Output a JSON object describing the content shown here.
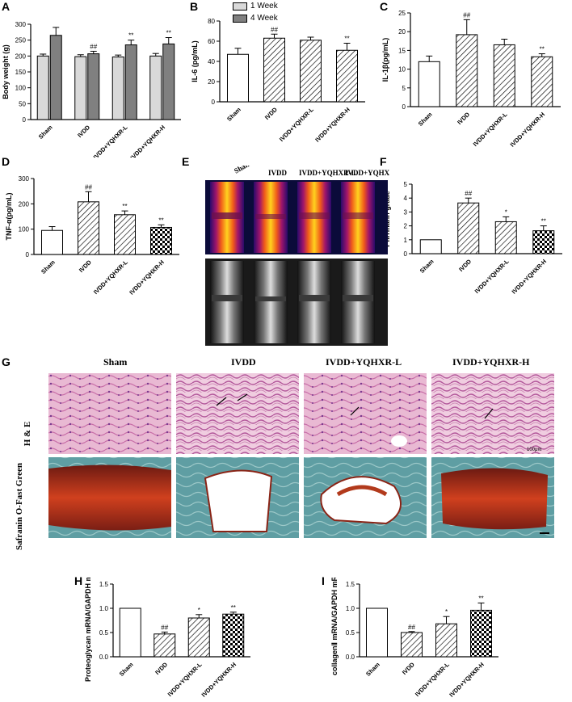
{
  "panel_letters": [
    "A",
    "B",
    "C",
    "D",
    "E",
    "F",
    "G",
    "H",
    "I"
  ],
  "colors": {
    "light_gray": "#d9d9d9",
    "dark_gray": "#808080",
    "white": "#ffffff"
  },
  "chart_data": [
    {
      "id": "A",
      "type": "bar",
      "categories": [
        "Sham",
        "IVDD",
        "IVDD+YQHXR-L",
        "IVDD+YQHXR-H"
      ],
      "series": [
        {
          "name": "1 Week",
          "values": [
            200,
            198,
            197,
            200
          ],
          "errors": [
            6,
            6,
            6,
            8
          ],
          "marks": [
            "",
            "",
            "",
            ""
          ]
        },
        {
          "name": "4 Week",
          "values": [
            265,
            207,
            235,
            238
          ],
          "errors": [
            25,
            8,
            15,
            20
          ],
          "marks": [
            "",
            "##",
            "**",
            "**"
          ]
        }
      ],
      "ylabel": "Body weight (g)",
      "ylim": [
        0,
        300
      ],
      "yticks": [
        0,
        50,
        100,
        150,
        200,
        250,
        300
      ],
      "legend": "top-right"
    },
    {
      "id": "B",
      "type": "bar",
      "categories": [
        "Sham",
        "IVDD",
        "IVDD+YQHXR-L",
        "IVDD+YQHXR-H"
      ],
      "values": [
        47,
        63,
        61,
        51
      ],
      "errors": [
        6,
        4,
        3,
        7
      ],
      "marks": [
        "",
        "##",
        "",
        "**"
      ],
      "patterns": [
        "white",
        "hatch",
        "hatch",
        "hatch"
      ],
      "ylabel": "IL-6 (pg/mL)",
      "ylim": [
        0,
        80
      ],
      "yticks": [
        0,
        20,
        40,
        60,
        80
      ]
    },
    {
      "id": "C",
      "type": "bar",
      "categories": [
        "Sham",
        "IVDD",
        "IVDD+YQHXR-L",
        "IVDD+YQHXR-H"
      ],
      "values": [
        12,
        19.2,
        16.5,
        13.3
      ],
      "errors": [
        1.5,
        4,
        1.5,
        0.8
      ],
      "marks": [
        "",
        "##",
        "",
        "**"
      ],
      "patterns": [
        "white",
        "hatch",
        "hatch",
        "hatch"
      ],
      "ylabel": "IL-1β(pg/mL)",
      "ylim": [
        0,
        25
      ],
      "yticks": [
        0,
        5,
        10,
        15,
        20,
        25
      ]
    },
    {
      "id": "D",
      "type": "bar",
      "categories": [
        "Sham",
        "IVDD",
        "IVDD+YQHXR-L",
        "IVDD+YQHXR-H"
      ],
      "values": [
        95,
        208,
        157,
        107
      ],
      "errors": [
        15,
        40,
        15,
        10
      ],
      "marks": [
        "",
        "##",
        "**",
        "**"
      ],
      "patterns": [
        "white",
        "hatch",
        "hatch",
        "check"
      ],
      "ylabel": "TNF-α(pg/mL)",
      "ylim": [
        0,
        300
      ],
      "yticks": [
        0,
        100,
        200,
        300
      ]
    },
    {
      "id": "F",
      "type": "bar",
      "categories": [
        "Sham",
        "IVDD",
        "IVDD+YQHXR-L",
        "IVDD+YQHXR-H"
      ],
      "values": [
        1,
        3.65,
        2.3,
        1.65
      ],
      "errors": [
        0,
        0.35,
        0.35,
        0.35
      ],
      "marks": [
        "",
        "##",
        "*",
        "**"
      ],
      "patterns": [
        "white",
        "hatch",
        "hatch",
        "check"
      ],
      "ylabel": "Pfirrmann grade",
      "ylim": [
        0,
        5
      ],
      "yticks": [
        0,
        1,
        2,
        3,
        4,
        5
      ]
    },
    {
      "id": "H",
      "type": "bar",
      "categories": [
        "Sham",
        "IVDD",
        "IVDD+YQHXR-L",
        "IVDD+YQHXR-H"
      ],
      "values": [
        1.0,
        0.47,
        0.8,
        0.88
      ],
      "errors": [
        0,
        0.04,
        0.07,
        0.04
      ],
      "marks": [
        "",
        "##",
        "*",
        "**"
      ],
      "patterns": [
        "white",
        "hatch",
        "hatch",
        "check"
      ],
      "ylabel": "Proteoglycan mRNA/GAPDH mRNA",
      "ylim": [
        0,
        1.5
      ],
      "yticks": [
        "0.0",
        "0.5",
        "1.0",
        "1.5"
      ]
    },
    {
      "id": "I",
      "type": "bar",
      "categories": [
        "Sham",
        "IVDD",
        "IVDD+YQHXR-L",
        "IVDD+YQHXR-H"
      ],
      "values": [
        1.0,
        0.5,
        0.68,
        0.96
      ],
      "errors": [
        0,
        0.02,
        0.15,
        0.15
      ],
      "marks": [
        "",
        "##",
        "*",
        "**"
      ],
      "patterns": [
        "white",
        "hatch",
        "hatch",
        "check"
      ],
      "ylabel": "collagenⅡ mRNA/GAPDH mRNA",
      "ylim": [
        0,
        1.5
      ],
      "yticks": [
        "0.0",
        "0.5",
        "1.0",
        "1.5"
      ]
    }
  ],
  "mri": {
    "columns": [
      "Sham",
      "IVDD",
      "IVDD+YQHXR-L",
      "IVDD+YQHXR-H"
    ]
  },
  "histology": {
    "columns": [
      "Sham",
      "IVDD",
      "IVDD+YQHXR-L",
      "IVDD+YQHXR-H"
    ],
    "rows": [
      "H & E",
      "Safranin O-Fast Green"
    ],
    "scale_label": "100μm"
  }
}
